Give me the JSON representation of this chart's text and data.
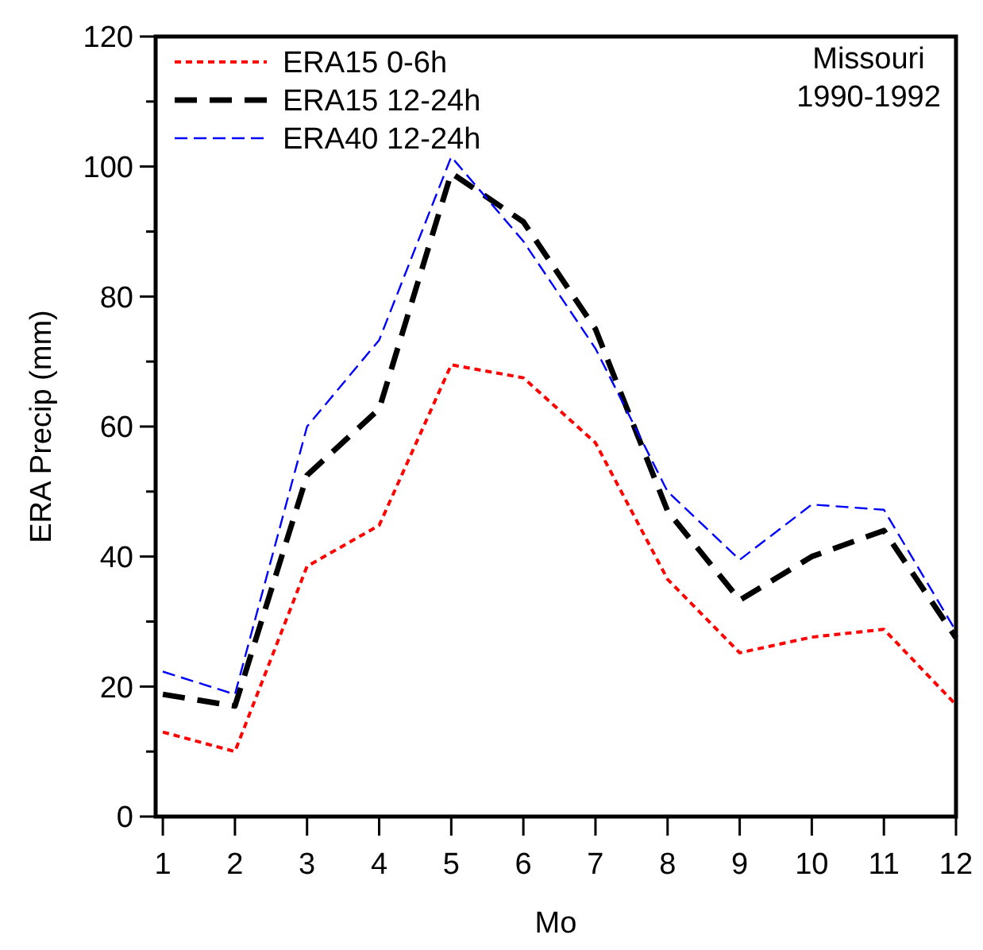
{
  "chart_data": {
    "type": "line",
    "xlabel": "Mo",
    "ylabel": "ERA Precip (mm)",
    "x": [
      1,
      2,
      3,
      4,
      5,
      6,
      7,
      8,
      9,
      10,
      11,
      12
    ],
    "xlim": [
      0.9,
      12
    ],
    "xticks": [
      1,
      2,
      3,
      4,
      5,
      6,
      7,
      8,
      9,
      10,
      11,
      12
    ],
    "ylim": [
      0,
      120
    ],
    "yticks": [
      0,
      {
        "value": 10,
        "label": null
      },
      20,
      {
        "value": 30,
        "label": null
      },
      40,
      {
        "value": 50,
        "label": null
      },
      60,
      {
        "value": 70,
        "label": null
      },
      80,
      {
        "value": 90,
        "label": null
      },
      100,
      {
        "value": 110,
        "label": null
      },
      120
    ],
    "grid": false,
    "legend": "top left",
    "annotations": [
      "Missouri",
      "1990-1992"
    ],
    "series": [
      {
        "name": "ERA15 0-6h",
        "color": "#ff0000",
        "line_style": "dotted",
        "values": [
          13,
          10,
          38.5,
          44.8,
          69.5,
          67.5,
          57.5,
          36.5,
          25.2,
          27.6,
          28.8,
          17.2
        ]
      },
      {
        "name": "ERA15 12-24h",
        "color": "#000000",
        "line_style": "dashed",
        "values": [
          18.8,
          17,
          52.5,
          62.7,
          99,
          91.5,
          75,
          47,
          33.3,
          40,
          44,
          27.5
        ]
      },
      {
        "name": "ERA40 12-24h",
        "color": "#0000ff",
        "line_style": "dashed",
        "values": [
          22.3,
          18.8,
          60,
          73.3,
          101.5,
          88.5,
          72,
          50,
          39.5,
          48,
          47.2,
          28.5
        ]
      }
    ]
  }
}
